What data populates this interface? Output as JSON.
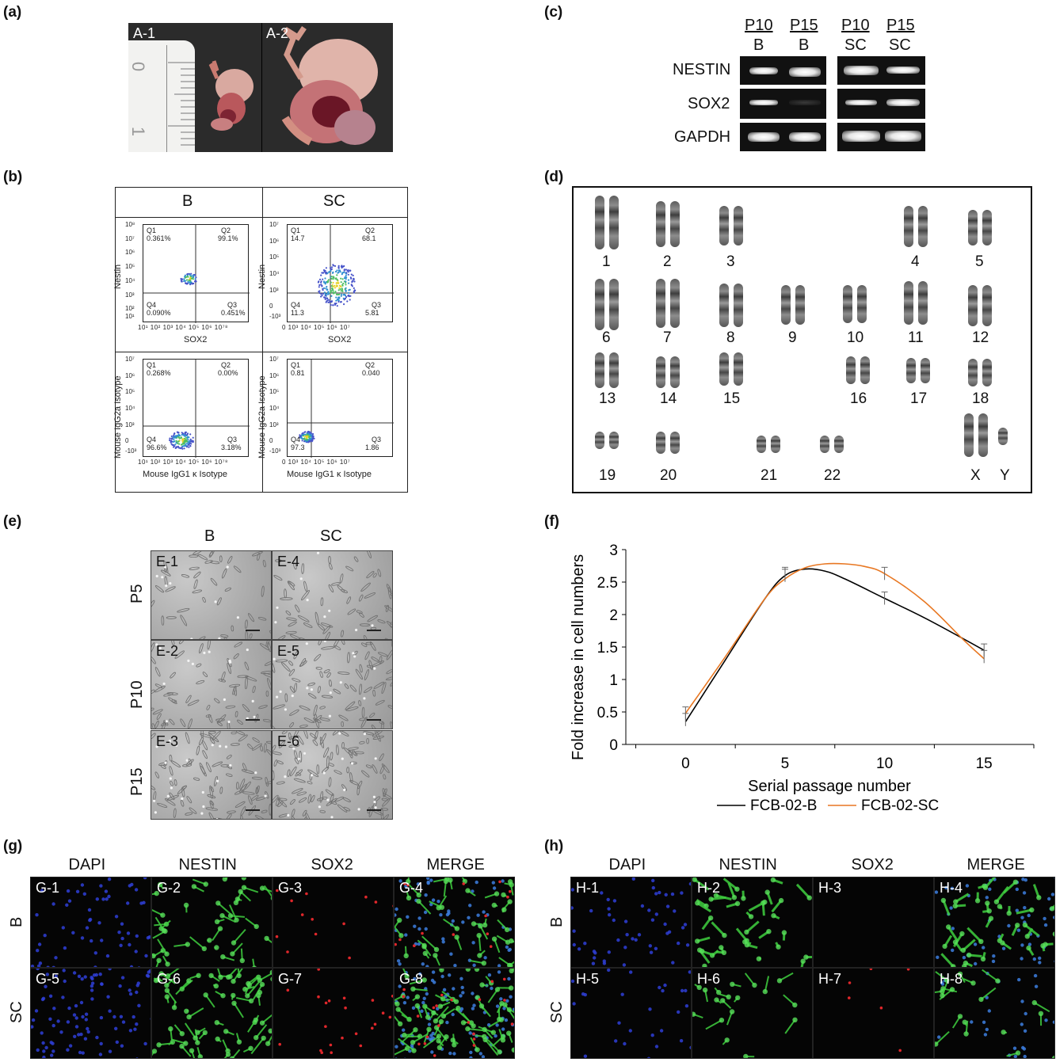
{
  "panels": {
    "a": "(a)",
    "b": "(b)",
    "c": "(c)",
    "d": "(d)",
    "e": "(e)",
    "f": "(f)",
    "g": "(g)",
    "h": "(h)"
  },
  "panel_a": {
    "tiles": [
      "A-1",
      "A-2"
    ],
    "ruler_numbers": [
      "0",
      "1"
    ]
  },
  "panel_b": {
    "columns": [
      "B",
      "SC"
    ],
    "plots": [
      {
        "ylabel": "Nestin",
        "xlabel": "SOX2",
        "q1": "Q1",
        "q1v": "0.361%",
        "q2": "Q2",
        "q2v": "99.1%",
        "q3": "Q3",
        "q3v": "0.451%",
        "q4": "Q4",
        "q4v": "0.090%",
        "yticks": [
          "10⁸",
          "10⁷",
          "10⁶",
          "10⁵",
          "10⁴",
          "10³",
          "10²",
          "10¹"
        ],
        "xticks": "10¹ 10² 10³ 10⁴ 10⁵ 10⁶ 10⁷⁸"
      },
      {
        "ylabel": "Nestin",
        "xlabel": "SOX2",
        "q1": "Q1",
        "q1v": "14.7",
        "q2": "Q2",
        "q2v": "68.1",
        "q3": "Q3",
        "q3v": "5.81",
        "q4": "Q4",
        "q4v": "11.3",
        "yticks": [
          "10⁷",
          "10⁶",
          "10⁵",
          "10⁴",
          "10³",
          "0",
          "-10³"
        ],
        "xticks": "0  10³ 10⁴ 10⁵ 10⁶ 10⁷"
      },
      {
        "ylabel": "Mouse IgG2a Isotype",
        "xlabel": "Mouse IgG1 κ Isotype",
        "q1": "Q1",
        "q1v": "0.268%",
        "q2": "Q2",
        "q2v": "0.00%",
        "q3": "Q3",
        "q3v": "3.18%",
        "q4": "Q4",
        "q4v": "96.6%",
        "yticks": [
          "10⁷",
          "10⁶",
          "10⁵",
          "10⁴",
          "10³",
          "0",
          "-10³"
        ],
        "xticks": "10¹ 10² 10³ 10⁴ 10⁵ 10⁶ 10⁷⁸"
      },
      {
        "ylabel": "Mouse IgG2a Isotype",
        "xlabel": "Mouse IgG1 κ Isotype",
        "q1": "Q1",
        "q1v": "0.81",
        "q2": "Q2",
        "q2v": "0.040",
        "q3": "Q3",
        "q3v": "1.86",
        "q4": "Q4",
        "q4v": "97.3",
        "yticks": [
          "10⁷",
          "10⁶",
          "10⁵",
          "10⁴",
          "10³",
          "0",
          "-10³"
        ],
        "xticks": "0  10³ 10⁴ 10⁵ 10⁶ 10⁷"
      }
    ]
  },
  "panel_c": {
    "lanes": [
      {
        "top": "P10",
        "bottom": "B"
      },
      {
        "top": "P15",
        "bottom": "B"
      },
      {
        "top": "P10",
        "bottom": "SC"
      },
      {
        "top": "P15",
        "bottom": "SC"
      }
    ],
    "genes": [
      "NESTIN",
      "SOX2",
      "GAPDH"
    ]
  },
  "panel_d": {
    "labels": [
      "1",
      "2",
      "3",
      "4",
      "5",
      "6",
      "7",
      "8",
      "9",
      "10",
      "11",
      "12",
      "13",
      "14",
      "15",
      "16",
      "17",
      "18",
      "19",
      "20",
      "21",
      "22",
      "X",
      "Y"
    ]
  },
  "panel_e": {
    "columns": [
      "B",
      "SC"
    ],
    "rows": [
      "P5",
      "P10",
      "P15"
    ],
    "tiles": [
      "E-1",
      "E-4",
      "E-2",
      "E-5",
      "E-3",
      "E-6"
    ]
  },
  "panel_g": {
    "columns": [
      "DAPI",
      "NESTIN",
      "SOX2",
      "MERGE"
    ],
    "rows": [
      "B",
      "SC"
    ],
    "tiles": [
      "G-1",
      "G-2",
      "G-3",
      "G-4",
      "G-5",
      "G-6",
      "G-7",
      "G-8"
    ]
  },
  "panel_h": {
    "columns": [
      "DAPI",
      "NESTIN",
      "SOX2",
      "MERGE"
    ],
    "rows": [
      "B",
      "SC"
    ],
    "tiles": [
      "H-1",
      "H-2",
      "H-3",
      "H-4",
      "H-5",
      "H-6",
      "H-7",
      "H-8"
    ]
  },
  "chart_data": {
    "type": "line",
    "xlabel": "Serial passage number",
    "ylabel": "Fold increase in cell numbers",
    "xlim": [
      -3,
      17.5
    ],
    "ylim": [
      0,
      3
    ],
    "xticks": [
      0,
      5,
      10,
      15
    ],
    "yticks": [
      0,
      0.5,
      1,
      1.5,
      2,
      2.5,
      3
    ],
    "legend_position": "bottom",
    "series": [
      {
        "name": "FCB-02-B",
        "color": "#000000",
        "x": [
          0,
          5,
          10,
          15
        ],
        "y": [
          0.38,
          2.63,
          2.25,
          1.45
        ],
        "curve": [
          [
            0,
            0.35
          ],
          [
            2,
            1.3
          ],
          [
            4,
            2.25
          ],
          [
            5,
            2.6
          ],
          [
            6,
            2.7
          ],
          [
            7,
            2.67
          ],
          [
            8,
            2.55
          ],
          [
            10,
            2.25
          ],
          [
            12,
            1.95
          ],
          [
            14,
            1.62
          ],
          [
            15,
            1.45
          ]
        ]
      },
      {
        "name": "FCB-02-SC",
        "color": "#e87722",
        "x": [
          0,
          5,
          10,
          15
        ],
        "y": [
          0.48,
          2.6,
          2.63,
          1.35
        ],
        "curve": [
          [
            0,
            0.48
          ],
          [
            2,
            1.35
          ],
          [
            4,
            2.25
          ],
          [
            5,
            2.55
          ],
          [
            6,
            2.72
          ],
          [
            7,
            2.78
          ],
          [
            8,
            2.78
          ],
          [
            9,
            2.74
          ],
          [
            10,
            2.63
          ],
          [
            12,
            2.2
          ],
          [
            14,
            1.6
          ],
          [
            15,
            1.32
          ]
        ]
      }
    ]
  }
}
